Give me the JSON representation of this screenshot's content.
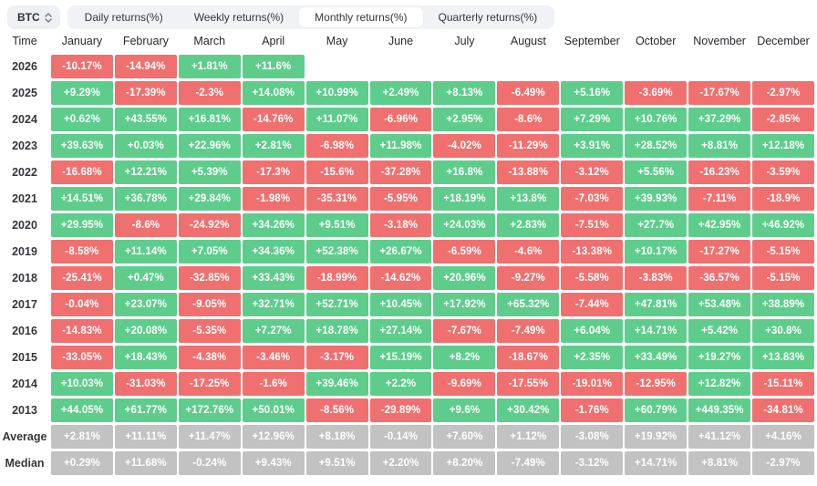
{
  "toolbar": {
    "symbol": "BTC",
    "tabs": [
      {
        "label": "Daily returns(%)",
        "active": false
      },
      {
        "label": "Weekly returns(%)",
        "active": false
      },
      {
        "label": "Monthly returns(%)",
        "active": true
      },
      {
        "label": "Quarterly returns(%)",
        "active": false
      }
    ]
  },
  "colors": {
    "positive": "#5ECD8C",
    "negative": "#F07070",
    "neutral": "#C2C2C2"
  },
  "table": {
    "corner_label": "Time",
    "months": [
      "January",
      "February",
      "March",
      "April",
      "May",
      "June",
      "July",
      "August",
      "September",
      "October",
      "November",
      "December"
    ],
    "rows": [
      {
        "label": "2026",
        "type": "year",
        "values": [
          "-10.17%",
          "-14.94%",
          "+1.81%",
          "+11.6%",
          "",
          "",
          "",
          "",
          "",
          "",
          "",
          ""
        ]
      },
      {
        "label": "2025",
        "type": "year",
        "values": [
          "+9.29%",
          "-17.39%",
          "-2.3%",
          "+14.08%",
          "+10.99%",
          "+2.49%",
          "+8.13%",
          "-6.49%",
          "+5.16%",
          "-3.69%",
          "-17.67%",
          "-2.97%"
        ]
      },
      {
        "label": "2024",
        "type": "year",
        "values": [
          "+0.62%",
          "+43.55%",
          "+16.81%",
          "-14.76%",
          "+11.07%",
          "-6.96%",
          "+2.95%",
          "-8.6%",
          "+7.29%",
          "+10.76%",
          "+37.29%",
          "-2.85%"
        ]
      },
      {
        "label": "2023",
        "type": "year",
        "values": [
          "+39.63%",
          "+0.03%",
          "+22.96%",
          "+2.81%",
          "-6.98%",
          "+11.98%",
          "-4.02%",
          "-11.29%",
          "+3.91%",
          "+28.52%",
          "+8.81%",
          "+12.18%"
        ]
      },
      {
        "label": "2022",
        "type": "year",
        "values": [
          "-16.68%",
          "+12.21%",
          "+5.39%",
          "-17.3%",
          "-15.6%",
          "-37.28%",
          "+16.8%",
          "-13.88%",
          "-3.12%",
          "+5.56%",
          "-16.23%",
          "-3.59%"
        ]
      },
      {
        "label": "2021",
        "type": "year",
        "values": [
          "+14.51%",
          "+36.78%",
          "+29.84%",
          "-1.98%",
          "-35.31%",
          "-5.95%",
          "+18.19%",
          "+13.8%",
          "-7.03%",
          "+39.93%",
          "-7.11%",
          "-18.9%"
        ]
      },
      {
        "label": "2020",
        "type": "year",
        "values": [
          "+29.95%",
          "-8.6%",
          "-24.92%",
          "+34.26%",
          "+9.51%",
          "-3.18%",
          "+24.03%",
          "+2.83%",
          "-7.51%",
          "+27.7%",
          "+42.95%",
          "+46.92%"
        ]
      },
      {
        "label": "2019",
        "type": "year",
        "values": [
          "-8.58%",
          "+11.14%",
          "+7.05%",
          "+34.36%",
          "+52.38%",
          "+26.67%",
          "-6.59%",
          "-4.6%",
          "-13.38%",
          "+10.17%",
          "-17.27%",
          "-5.15%"
        ]
      },
      {
        "label": "2018",
        "type": "year",
        "values": [
          "-25.41%",
          "+0.47%",
          "-32.85%",
          "+33.43%",
          "-18.99%",
          "-14.62%",
          "+20.96%",
          "-9.27%",
          "-5.58%",
          "-3.83%",
          "-36.57%",
          "-5.15%"
        ]
      },
      {
        "label": "2017",
        "type": "year",
        "values": [
          "-0.04%",
          "+23.07%",
          "-9.05%",
          "+32.71%",
          "+52.71%",
          "+10.45%",
          "+17.92%",
          "+65.32%",
          "-7.44%",
          "+47.81%",
          "+53.48%",
          "+38.89%"
        ]
      },
      {
        "label": "2016",
        "type": "year",
        "values": [
          "-14.83%",
          "+20.08%",
          "-5.35%",
          "+7.27%",
          "+18.78%",
          "+27.14%",
          "-7.67%",
          "-7.49%",
          "+6.04%",
          "+14.71%",
          "+5.42%",
          "+30.8%"
        ]
      },
      {
        "label": "2015",
        "type": "year",
        "values": [
          "-33.05%",
          "+18.43%",
          "-4.38%",
          "-3.46%",
          "-3.17%",
          "+15.19%",
          "+8.2%",
          "-18.67%",
          "+2.35%",
          "+33.49%",
          "+19.27%",
          "+13.83%"
        ]
      },
      {
        "label": "2014",
        "type": "year",
        "values": [
          "+10.03%",
          "-31.03%",
          "-17.25%",
          "-1.6%",
          "+39.46%",
          "+2.2%",
          "-9.69%",
          "-17.55%",
          "-19.01%",
          "-12.95%",
          "+12.82%",
          "-15.11%"
        ]
      },
      {
        "label": "2013",
        "type": "year",
        "values": [
          "+44.05%",
          "+61.77%",
          "+172.76%",
          "+50.01%",
          "-8.56%",
          "-29.89%",
          "+9.6%",
          "+30.42%",
          "-1.76%",
          "+60.79%",
          "+449.35%",
          "-34.81%"
        ]
      },
      {
        "label": "Average",
        "type": "stat",
        "values": [
          "+2.81%",
          "+11.11%",
          "+11.47%",
          "+12.96%",
          "+8.18%",
          "-0.14%",
          "+7.60%",
          "+1.12%",
          "-3.08%",
          "+19.92%",
          "+41.12%",
          "+4.16%"
        ]
      },
      {
        "label": "Median",
        "type": "stat",
        "values": [
          "+0.29%",
          "+11.68%",
          "-0.24%",
          "+9.43%",
          "+9.51%",
          "+2.20%",
          "+8.20%",
          "-7.49%",
          "-3.12%",
          "+14.71%",
          "+8.81%",
          "-2.97%"
        ]
      }
    ]
  }
}
